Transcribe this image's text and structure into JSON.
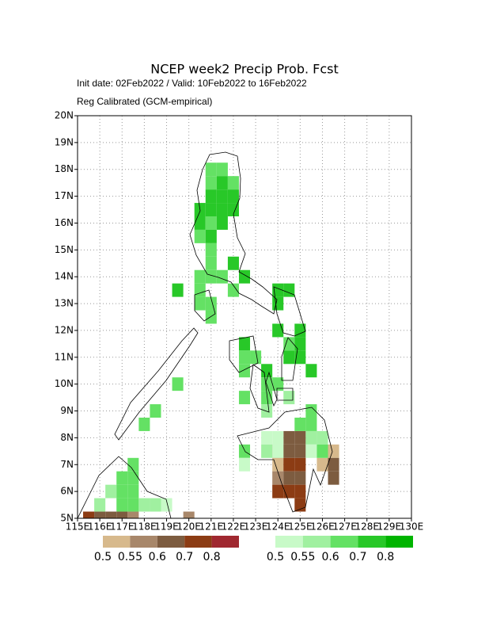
{
  "chart_data": {
    "type": "grid-map",
    "title": "NCEP week2 Precip Prob. Fcst",
    "subtitle": [
      "Init date: 02Feb2022 / Valid: 10Feb2022 to 16Feb2022",
      "Reg Calibrated (GCM-empirical)"
    ],
    "xlim": [
      115,
      130
    ],
    "ylim": [
      5,
      20
    ],
    "xticks": [
      {
        "value": 115,
        "label": "115E"
      },
      {
        "value": 116,
        "label": "116E"
      },
      {
        "value": 117,
        "label": "117E"
      },
      {
        "value": 118,
        "label": "118E"
      },
      {
        "value": 119,
        "label": "119E"
      },
      {
        "value": 120,
        "label": "120E"
      },
      {
        "value": 121,
        "label": "121E"
      },
      {
        "value": 122,
        "label": "122E"
      },
      {
        "value": 123,
        "label": "123E"
      },
      {
        "value": 124,
        "label": "124E"
      },
      {
        "value": 125,
        "label": "125E"
      },
      {
        "value": 126,
        "label": "126E"
      },
      {
        "value": 127,
        "label": "127E"
      },
      {
        "value": 128,
        "label": "128E"
      },
      {
        "value": 129,
        "label": "129E"
      },
      {
        "value": 130,
        "label": "130E"
      }
    ],
    "yticks": [
      {
        "value": 5,
        "label": "5N"
      },
      {
        "value": 6,
        "label": "6N"
      },
      {
        "value": 7,
        "label": "7N"
      },
      {
        "value": 8,
        "label": "8N"
      },
      {
        "value": 9,
        "label": "9N"
      },
      {
        "value": 10,
        "label": "10N"
      },
      {
        "value": 11,
        "label": "11N"
      },
      {
        "value": 12,
        "label": "12N"
      },
      {
        "value": 13,
        "label": "13N"
      },
      {
        "value": 14,
        "label": "14N"
      },
      {
        "value": 15,
        "label": "15N"
      },
      {
        "value": 16,
        "label": "16N"
      },
      {
        "value": 17,
        "label": "17N"
      },
      {
        "value": 18,
        "label": "18N"
      },
      {
        "value": 19,
        "label": "19N"
      },
      {
        "value": 20,
        "label": "20N"
      }
    ],
    "grid": true,
    "dry": {
      "levels": [
        0.5,
        0.55,
        0.6,
        0.7,
        0.8
      ],
      "colors": [
        "#d7b98c",
        "#a8876a",
        "#7d5c40",
        "#8c3c14",
        "#a02830"
      ],
      "cells": [
        [
          124.5,
          8,
          0.6
        ],
        [
          125,
          8,
          0.6
        ],
        [
          124,
          7.5,
          0.55
        ],
        [
          124.5,
          7.5,
          0.6
        ],
        [
          125,
          7.5,
          0.6
        ],
        [
          126.5,
          7.5,
          0.5
        ],
        [
          124,
          7,
          0.5
        ],
        [
          124.5,
          7,
          0.7
        ],
        [
          125,
          7,
          0.7
        ],
        [
          126,
          7,
          0.5
        ],
        [
          126.5,
          7,
          0.6
        ],
        [
          124,
          6.5,
          0.55
        ],
        [
          124.5,
          6.5,
          0.6
        ],
        [
          125,
          6.5,
          0.6
        ],
        [
          126.5,
          6.5,
          0.6
        ],
        [
          124,
          6,
          0.7
        ],
        [
          124.5,
          6,
          0.7
        ],
        [
          125,
          6,
          0.7
        ],
        [
          125,
          5.5,
          0.7
        ],
        [
          115.5,
          5,
          0.7
        ],
        [
          116,
          5,
          0.6
        ],
        [
          116.5,
          5,
          0.6
        ],
        [
          117,
          5,
          0.6
        ],
        [
          117.5,
          5,
          0.55
        ],
        [
          120,
          5,
          0.55
        ]
      ]
    },
    "wet": {
      "levels": [
        0.5,
        0.55,
        0.6,
        0.7,
        0.8
      ],
      "colors": [
        "#c8fac8",
        "#a0f0a0",
        "#64e164",
        "#28c828",
        "#00b400"
      ],
      "cells": [
        [
          121,
          18,
          0.6
        ],
        [
          121.5,
          18,
          0.6
        ],
        [
          121,
          17.5,
          0.6
        ],
        [
          121.5,
          17.5,
          0.7
        ],
        [
          122,
          17.5,
          0.6
        ],
        [
          121,
          17,
          0.7
        ],
        [
          121.5,
          17,
          0.7
        ],
        [
          122,
          17,
          0.7
        ],
        [
          120.5,
          16.5,
          0.7
        ],
        [
          121,
          16.5,
          0.7
        ],
        [
          121.5,
          16.5,
          0.7
        ],
        [
          122,
          16.5,
          0.7
        ],
        [
          120.5,
          16,
          0.7
        ],
        [
          121,
          16,
          0.6
        ],
        [
          121.5,
          16,
          0.7
        ],
        [
          120.5,
          15.5,
          0.6
        ],
        [
          121,
          15.5,
          0.7
        ],
        [
          121,
          15,
          0.6
        ],
        [
          121,
          14.5,
          0.6
        ],
        [
          122,
          14.5,
          0.7
        ],
        [
          120.5,
          14,
          0.6
        ],
        [
          121,
          14,
          0.6
        ],
        [
          121.5,
          14,
          0.6
        ],
        [
          122.5,
          14,
          0.7
        ],
        [
          119.5,
          13.5,
          0.7
        ],
        [
          120.5,
          13.5,
          0.6
        ],
        [
          122,
          13.5,
          0.6
        ],
        [
          124,
          13.5,
          0.7
        ],
        [
          124.5,
          13.5,
          0.7
        ],
        [
          120.5,
          13,
          0.6
        ],
        [
          121,
          13,
          0.6
        ],
        [
          124,
          13,
          0.7
        ],
        [
          121,
          12.5,
          0.6
        ],
        [
          124,
          12,
          0.7
        ],
        [
          125,
          12,
          0.7
        ],
        [
          122.5,
          11.5,
          0.7
        ],
        [
          124.5,
          11.5,
          0.6
        ],
        [
          125,
          11.5,
          0.7
        ],
        [
          122.5,
          11,
          0.6
        ],
        [
          123,
          11,
          0.6
        ],
        [
          124.5,
          11,
          0.7
        ],
        [
          125,
          11,
          0.7
        ],
        [
          122.5,
          10.5,
          0.6
        ],
        [
          123.5,
          10.5,
          0.7
        ],
        [
          125.5,
          10.5,
          0.7
        ],
        [
          119.5,
          10,
          0.6
        ],
        [
          123.5,
          10,
          0.6
        ],
        [
          124,
          10,
          0.6
        ],
        [
          122.5,
          9.5,
          0.6
        ],
        [
          123.5,
          9.5,
          0.6
        ],
        [
          124.5,
          9.5,
          0.55
        ],
        [
          118.5,
          9,
          0.6
        ],
        [
          123.5,
          9,
          0.55
        ],
        [
          125.5,
          9,
          0.6
        ],
        [
          118,
          8.5,
          0.6
        ],
        [
          125,
          8.5,
          0.6
        ],
        [
          125.5,
          8.5,
          0.6
        ],
        [
          123.5,
          8,
          0.5
        ],
        [
          124,
          8,
          0.5
        ],
        [
          125.5,
          8,
          0.55
        ],
        [
          126,
          8,
          0.55
        ],
        [
          122.5,
          7.5,
          0.6
        ],
        [
          123.5,
          7.5,
          0.55
        ],
        [
          124,
          7.5,
          0.5
        ],
        [
          125.5,
          7.5,
          0.5
        ],
        [
          126,
          7.5,
          0.6
        ],
        [
          117.5,
          7,
          0.6
        ],
        [
          122.5,
          7,
          0.5
        ],
        [
          117,
          6.5,
          0.6
        ],
        [
          117.5,
          6.5,
          0.6
        ],
        [
          116.5,
          6,
          0.55
        ],
        [
          117,
          6,
          0.6
        ],
        [
          117.5,
          6,
          0.6
        ],
        [
          116,
          5.5,
          0.55
        ],
        [
          117,
          5.5,
          0.6
        ],
        [
          117.5,
          5.5,
          0.6
        ],
        [
          118,
          5.5,
          0.55
        ],
        [
          118.5,
          5.5,
          0.55
        ],
        [
          119,
          5.5,
          0.5
        ]
      ]
    }
  }
}
